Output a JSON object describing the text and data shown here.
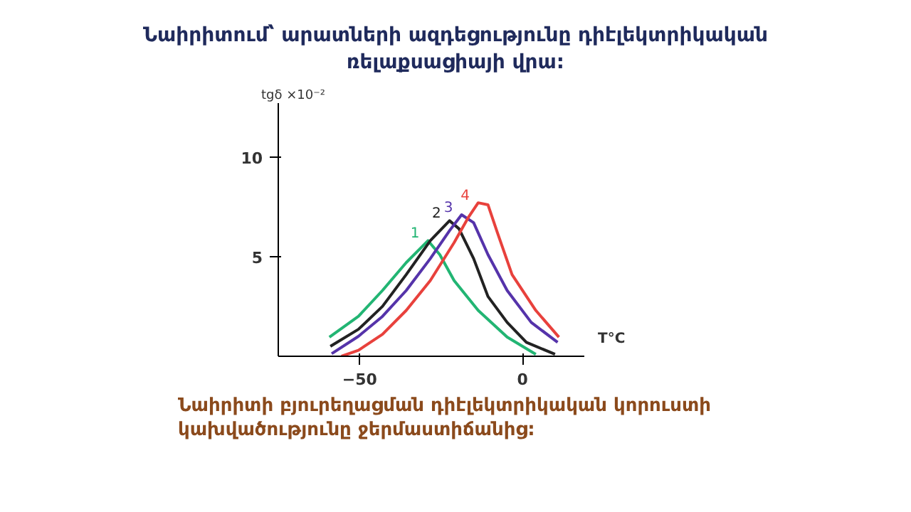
{
  "chart_data": {
    "type": "line",
    "title": "Նաիրիտում՝ արատների ազդեցությունը դիէլեկտրիկական\nռելաքսացիայի վրա:",
    "ylabel": "tgδ ×10⁻²",
    "xlabel": "T°C",
    "annotations": [
      "Նաիրիտի բյուրեղացման դիէլեկտրիկական կորուստի\nկախվածությունը ջերմաստիճանից:"
    ],
    "xlim": [
      -75,
      19
    ],
    "ylim": [
      0,
      12.7
    ],
    "xticks": [
      -50,
      0
    ],
    "yticks": [
      5,
      10
    ],
    "grid": false,
    "legend": false,
    "marker": "none",
    "line_style": "solid",
    "series": [
      {
        "name": "1",
        "color": "#22b573",
        "x": [
          -59.3,
          -50.4,
          -43,
          -35.7,
          -29,
          -25.4,
          -21,
          -13.6,
          -4.7,
          4.1
        ],
        "values": [
          0.96,
          2.0,
          3.3,
          4.7,
          5.8,
          5.1,
          3.8,
          2.3,
          0.96,
          0.1
        ]
      },
      {
        "name": "2",
        "color": "#222222",
        "x": [
          -59,
          -50.4,
          -43,
          -35.7,
          -28.3,
          -22.4,
          -19.5,
          -15,
          -10.6,
          -4.7,
          1.2,
          10
        ],
        "values": [
          0.5,
          1.35,
          2.5,
          4.1,
          5.8,
          6.8,
          6.4,
          4.9,
          3.0,
          1.7,
          0.7,
          0.1
        ]
      },
      {
        "name": "3",
        "color": "#5533aa",
        "x": [
          -58.6,
          -50.4,
          -43,
          -35.7,
          -28.3,
          -22.4,
          -18.7,
          -15,
          -10.6,
          -4.7,
          2.7,
          10.8
        ],
        "values": [
          0.13,
          1.0,
          2.0,
          3.3,
          4.9,
          6.3,
          7.1,
          6.7,
          5.1,
          3.3,
          1.7,
          0.7
        ]
      },
      {
        "name": "4",
        "color": "#e8413c",
        "x": [
          -55.6,
          -50.4,
          -43,
          -35.7,
          -28.3,
          -21,
          -16.5,
          -13.6,
          -10.6,
          -7.7,
          -3.2,
          4.1,
          11.2
        ],
        "values": [
          0.0,
          0.3,
          1.1,
          2.3,
          3.8,
          5.7,
          7.0,
          7.7,
          7.6,
          6.2,
          4.1,
          2.3,
          0.96
        ]
      }
    ]
  }
}
